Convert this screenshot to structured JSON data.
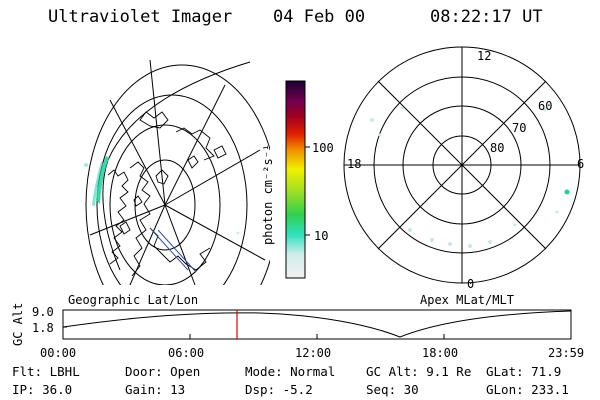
{
  "header": {
    "instrument": "Ultraviolet Imager",
    "date": "04 Feb 00",
    "time": "08:22:17 UT"
  },
  "colorbar": {
    "unit_label": "photon cm⁻²s⁻¹",
    "ticks": [
      "100",
      "10"
    ]
  },
  "polar_plot": {
    "mlt_labels": {
      "top": "12",
      "left": "18",
      "right": "6",
      "bottom": "0"
    },
    "lat_labels": [
      "60",
      "70",
      "80"
    ]
  },
  "altitude_strip": {
    "left_caption": "Geographic Lat/Lon",
    "right_caption": "Apex MLat/MLT",
    "axis_title": "GC Alt",
    "y_ticks": [
      "9.0",
      "1.8"
    ],
    "x_ticks": [
      "00:00",
      "06:00",
      "12:00",
      "18:00",
      "23:59"
    ],
    "marker_color": "#e00000"
  },
  "info": {
    "flt": "Flt: LBHL",
    "ip": "IP: 36.0",
    "door": "Door: Open",
    "gain": "Gain: 13",
    "mode": "Mode: Normal",
    "dsp": "Dsp:   -5.2",
    "gcalt": "GC Alt: 9.1 Re",
    "seq": "Seq: 30",
    "glat": "GLat:  71.9",
    "glon": "GLon: 233.1"
  }
}
